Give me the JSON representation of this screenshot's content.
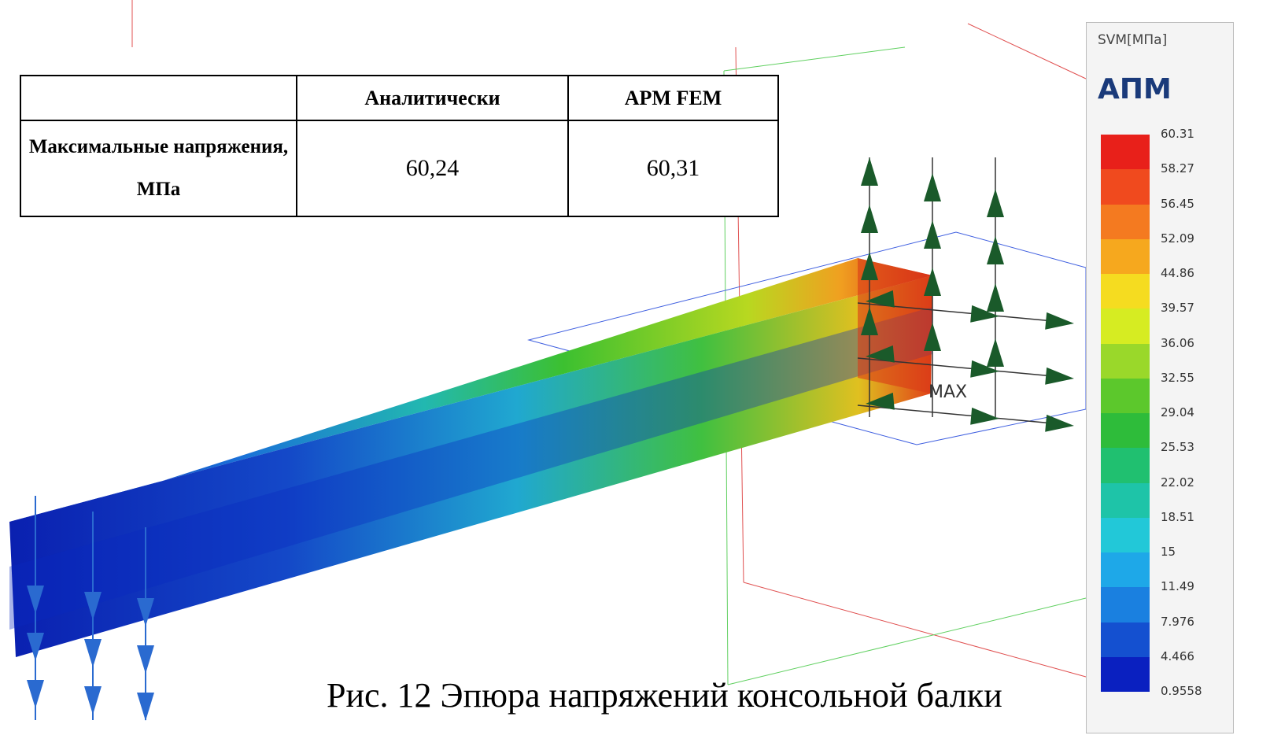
{
  "table": {
    "header": {
      "col1": "Аналитически",
      "col2": "APM FEM"
    },
    "rows": [
      [
        "Максимальные напряжения, МПа",
        "60,24",
        "60,31"
      ]
    ]
  },
  "legend": {
    "title": "SVM[МПа]",
    "brand": "АПМ",
    "values": [
      "60.31",
      "58.27",
      "56.45",
      "52.09",
      "44.86",
      "39.57",
      "36.06",
      "32.55",
      "29.04",
      "25.53",
      "22.02",
      "18.51",
      "15",
      "11.49",
      "7.976",
      "4.466",
      "0.9558"
    ]
  },
  "labels": {
    "max": "MAX"
  },
  "caption": "Рис. 12 Эпюра напряжений консольной балки"
}
